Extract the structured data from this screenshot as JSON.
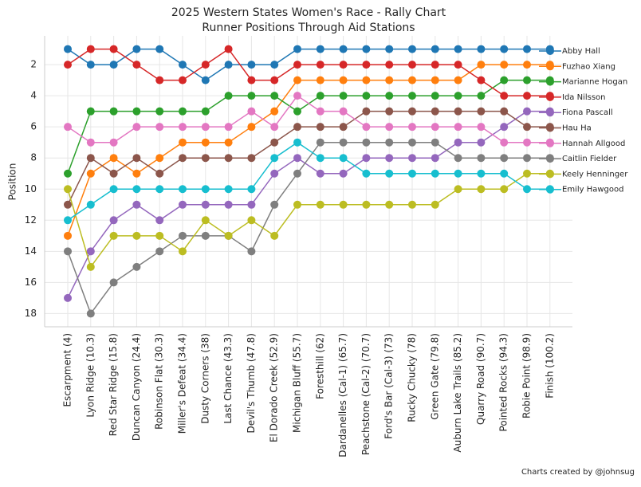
{
  "chart_data": {
    "type": "line",
    "title": "2025 Western States Women's Race - Rally Chart",
    "subtitle": "Runner Positions Through Aid Stations",
    "y_label": "Position",
    "footer": "Charts created by @johnsug",
    "categories": [
      "Escarpment (4)",
      "Lyon Ridge (10.3)",
      "Red Star Ridge (15.8)",
      "Duncan Canyon (24.4)",
      "Robinson Flat (30.3)",
      "Miller's Defeat (34.4)",
      "Dusty Corners (38)",
      "Last Chance (43.3)",
      "Devil's Thumb (47.8)",
      "El Dorado Creek (52.9)",
      "Michigan Bluff (55.7)",
      "Foresthill (62)",
      "Dardanelles (Cal-1) (65.7)",
      "Peachstone (Cal-2) (70.7)",
      "Ford's Bar (Cal-3) (73)",
      "Rucky Chucky (78)",
      "Green Gate (79.8)",
      "Auburn Lake Trails (85.2)",
      "Quarry Road (90.7)",
      "Pointed Rocks (94.3)",
      "Robie Point (98.9)",
      "Finish (100.2)"
    ],
    "ylim": [
      18.85,
      0.15
    ],
    "yticks": [
      2,
      4,
      6,
      8,
      10,
      12,
      14,
      16,
      18
    ],
    "grid": true,
    "legend": "right",
    "series": [
      {
        "name": "Abby Hall",
        "color": "#1f77b4",
        "values": [
          1,
          2,
          2,
          1,
          1,
          2,
          3,
          2,
          2,
          2,
          1,
          1,
          1,
          1,
          1,
          1,
          1,
          1,
          1,
          1,
          1,
          1
        ]
      },
      {
        "name": "Fuzhao Xiang",
        "color": "#ff7f0e",
        "values": [
          13,
          9,
          8,
          9,
          8,
          7,
          7,
          7,
          6,
          5,
          3,
          3,
          3,
          3,
          3,
          3,
          3,
          3,
          2,
          2,
          2,
          2
        ]
      },
      {
        "name": "Marianne Hogan",
        "color": "#2ca02c",
        "values": [
          9,
          5,
          5,
          5,
          5,
          5,
          5,
          4,
          4,
          4,
          5,
          4,
          4,
          4,
          4,
          4,
          4,
          4,
          4,
          3,
          3,
          3
        ]
      },
      {
        "name": "Ida Nilsson",
        "color": "#d62728",
        "values": [
          2,
          1,
          1,
          2,
          3,
          3,
          2,
          1,
          3,
          3,
          2,
          2,
          2,
          2,
          2,
          2,
          2,
          2,
          3,
          4,
          4,
          4
        ]
      },
      {
        "name": "Fiona Pascall",
        "color": "#9467bd",
        "values": [
          17,
          14,
          12,
          11,
          12,
          11,
          11,
          11,
          11,
          9,
          8,
          9,
          9,
          8,
          8,
          8,
          8,
          7,
          7,
          6,
          5,
          5
        ]
      },
      {
        "name": "Hau Ha",
        "color": "#8c564b",
        "values": [
          11,
          8,
          9,
          8,
          9,
          8,
          8,
          8,
          8,
          7,
          6,
          6,
          6,
          5,
          5,
          5,
          5,
          5,
          5,
          5,
          6,
          6
        ]
      },
      {
        "name": "Hannah Allgood",
        "color": "#e377c2",
        "values": [
          6,
          7,
          7,
          6,
          6,
          6,
          6,
          6,
          5,
          6,
          4,
          5,
          5,
          6,
          6,
          6,
          6,
          6,
          6,
          7,
          7,
          7
        ]
      },
      {
        "name": "Caitlin Fielder",
        "color": "#7f7f7f",
        "values": [
          14,
          18,
          16,
          15,
          14,
          13,
          13,
          13,
          14,
          11,
          9,
          7,
          7,
          7,
          7,
          7,
          7,
          8,
          8,
          8,
          8,
          8
        ]
      },
      {
        "name": "Keely Henninger",
        "color": "#bcbd22",
        "values": [
          10,
          15,
          13,
          13,
          13,
          14,
          12,
          13,
          12,
          13,
          11,
          11,
          11,
          11,
          11,
          11,
          11,
          10,
          10,
          10,
          9,
          9
        ]
      },
      {
        "name": "Emily Hawgood",
        "color": "#17becf",
        "values": [
          12,
          11,
          10,
          10,
          10,
          10,
          10,
          10,
          10,
          8,
          7,
          8,
          8,
          9,
          9,
          9,
          9,
          9,
          9,
          9,
          10,
          10
        ]
      }
    ]
  }
}
